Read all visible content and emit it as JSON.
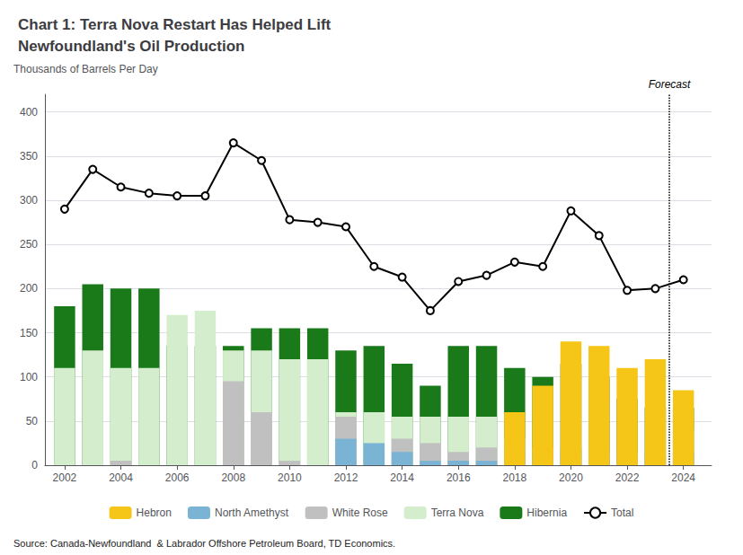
{
  "chart_data": {
    "type": "bar",
    "stacked": true,
    "title": "Chart 1: Terra Nova Restart Has Helped Lift\nNewfoundland's Oil Production",
    "ylabel": "Thousands of Barrels Per Day",
    "source": "Source: Canada-Newfoundland  & Labrador Offshore Petroleum Board, TD Economics.",
    "x": [
      2002,
      2003,
      2004,
      2005,
      2006,
      2007,
      2008,
      2009,
      2010,
      2011,
      2012,
      2013,
      2014,
      2015,
      2016,
      2017,
      2018,
      2019,
      2020,
      2021,
      2022,
      2023,
      2024
    ],
    "series": [
      {
        "name": "Hibernia",
        "color": "#1a7a1a",
        "values": [
          180,
          205,
          200,
          200,
          135,
          135,
          135,
          155,
          155,
          155,
          130,
          135,
          115,
          90,
          135,
          135,
          110,
          100,
          115,
          100,
          75,
          65,
          65
        ]
      },
      {
        "name": "Terra Nova",
        "color": "#d4edcc",
        "values": [
          110,
          130,
          110,
          110,
          170,
          175,
          130,
          130,
          120,
          120,
          60,
          60,
          55,
          55,
          55,
          55,
          30,
          0,
          0,
          0,
          0,
          0,
          40
        ]
      },
      {
        "name": "White Rose",
        "color": "#c0c0c0",
        "values": [
          0,
          0,
          5,
          0,
          0,
          0,
          95,
          60,
          5,
          0,
          55,
          20,
          30,
          25,
          15,
          20,
          20,
          20,
          15,
          15,
          5,
          5,
          5
        ]
      },
      {
        "name": "North Amethyst",
        "color": "#7ab3d4",
        "values": [
          0,
          0,
          0,
          0,
          0,
          0,
          0,
          0,
          0,
          0,
          30,
          25,
          15,
          5,
          5,
          5,
          15,
          15,
          20,
          10,
          15,
          10,
          15
        ]
      },
      {
        "name": "Hebron",
        "color": "#f5c518",
        "values": [
          0,
          0,
          0,
          0,
          0,
          0,
          0,
          0,
          0,
          0,
          0,
          0,
          0,
          0,
          0,
          0,
          60,
          90,
          140,
          135,
          110,
          120,
          85
        ]
      },
      {
        "name": "Total",
        "type": "line",
        "color": "#000000",
        "marker": "circle",
        "values": [
          290,
          335,
          315,
          308,
          305,
          305,
          365,
          345,
          278,
          275,
          270,
          225,
          213,
          175,
          208,
          215,
          230,
          225,
          288,
          260,
          198,
          200,
          210
        ]
      }
    ],
    "annotations": [
      {
        "text": "Forecast",
        "x": 2023.5
      }
    ],
    "xlim": [
      2001.3,
      2025.0
    ],
    "xticks": [
      2002,
      2004,
      2006,
      2008,
      2010,
      2012,
      2014,
      2016,
      2018,
      2020,
      2022,
      2024
    ],
    "ylim": [
      0,
      420
    ],
    "yticks": [
      0,
      50,
      100,
      150,
      200,
      250,
      300,
      350,
      400
    ],
    "grid": true,
    "legend": "bottom"
  }
}
